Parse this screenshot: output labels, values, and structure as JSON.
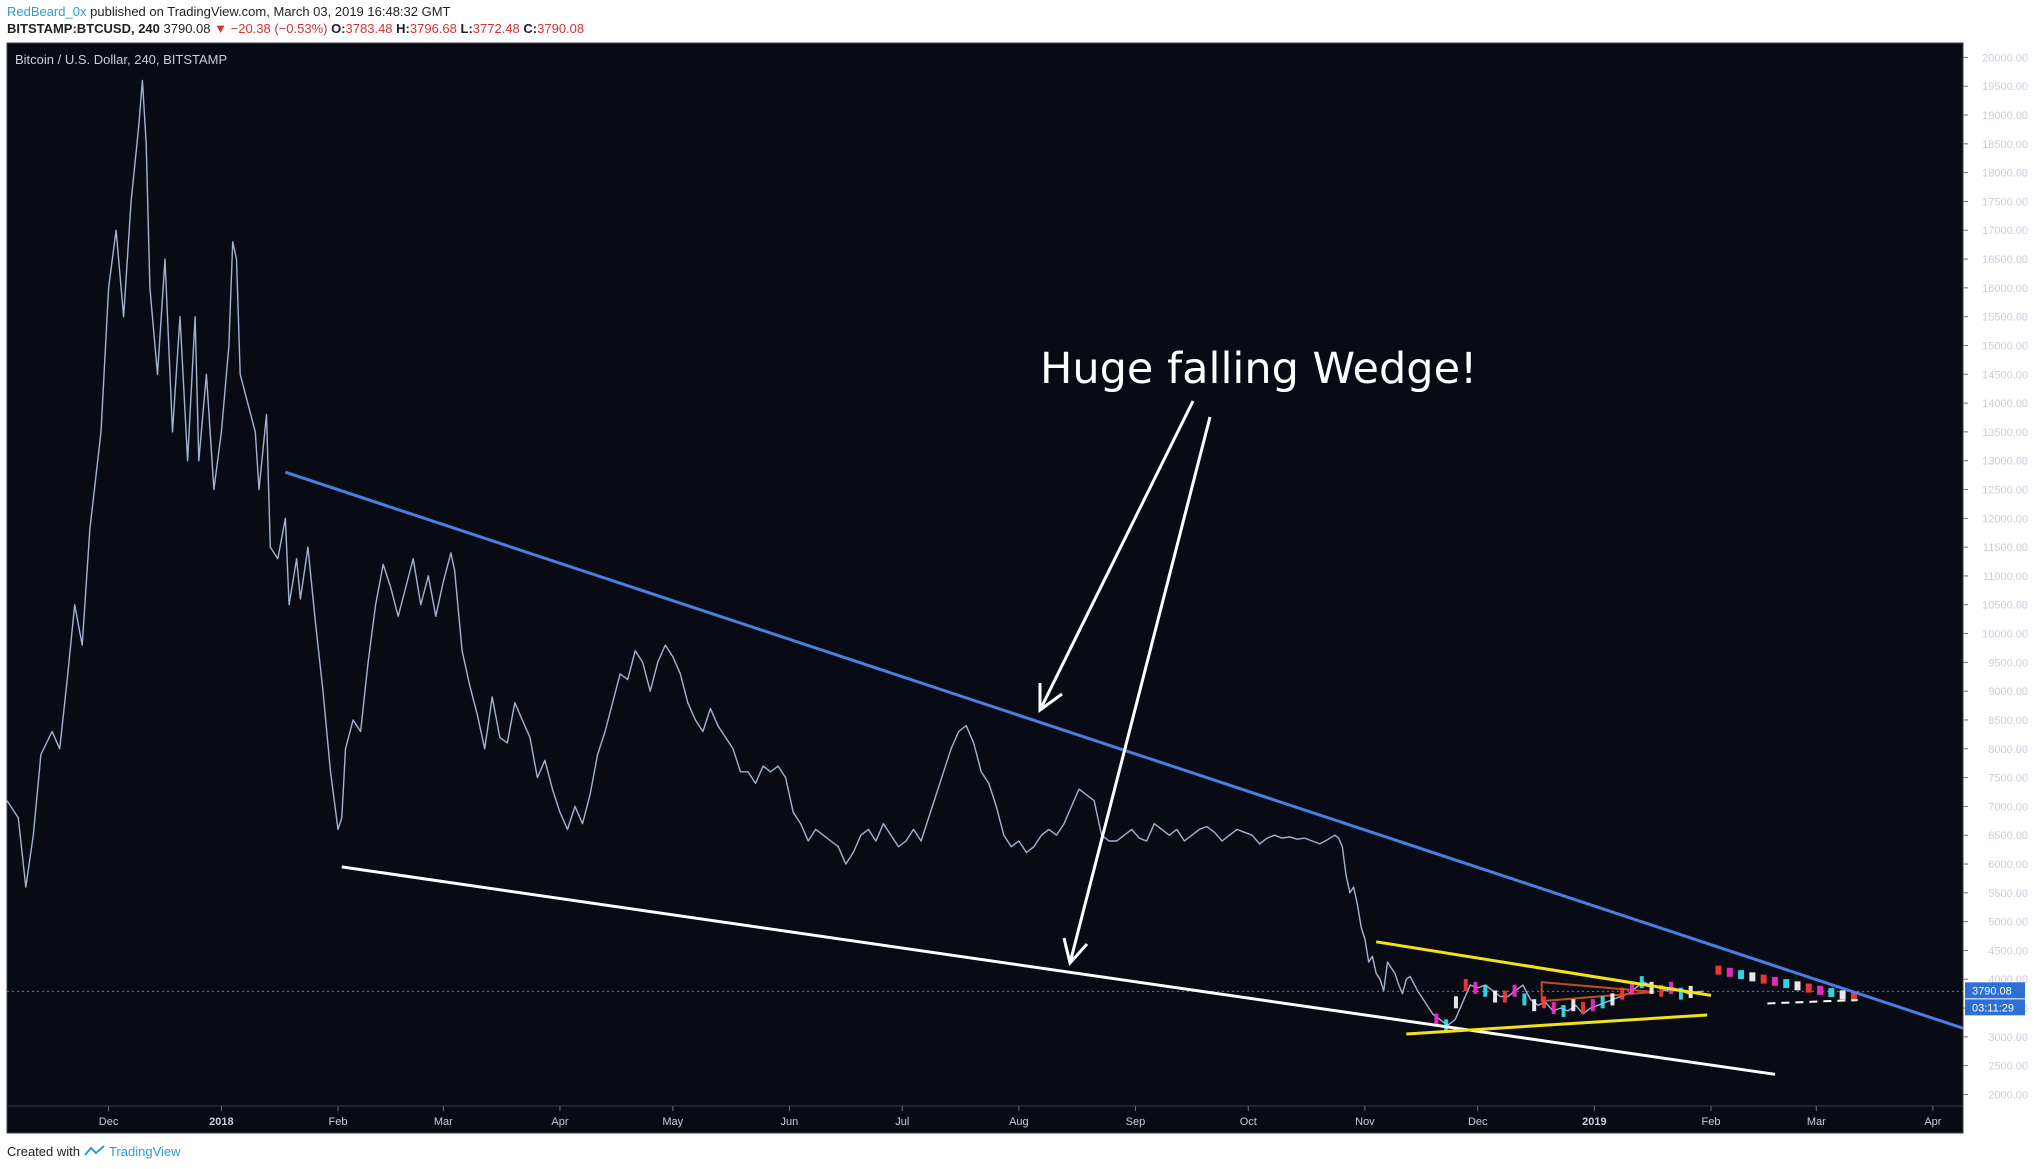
{
  "header": {
    "author": "RedBeard_0x",
    "published_text": "published on TradingView.com, March 03, 2019 16:48:32 GMT",
    "symbol": "BITSTAMP:BTCUSD, 240",
    "last": "3790.08",
    "change": "▼ −20.38 (−0.53%)",
    "o_label": "O:",
    "o_value": "3783.48",
    "h_label": "H:",
    "h_value": "3796.68",
    "l_label": "L:",
    "l_value": "3772.48",
    "c_label": "C:",
    "c_value": "3790.08"
  },
  "footer": {
    "created_with": "Created with",
    "brand": "TradingView"
  },
  "colors": {
    "background": "#080b14",
    "price": "#a3b2d3",
    "upper_trendline": "#4a7fe0",
    "lower_trendline": "#ffffff",
    "annotation": "#ffffff",
    "wedge_small": "#f2e21a",
    "last_price_badge": "#2e6fd6",
    "accent_cyan": "#38e6f2",
    "accent_magenta": "#ff2ad0"
  },
  "chart_data": {
    "type": "line",
    "title": "Bitcoin / U.S. Dollar, 240, BITSTAMP",
    "xlabel": "",
    "ylabel": "",
    "ylim": [
      1800,
      20250
    ],
    "y_ticks": [
      "20000.00",
      "19500.00",
      "19000.00",
      "18500.00",
      "18000.00",
      "17500.00",
      "17000.00",
      "16500.00",
      "16000.00",
      "15500.00",
      "15000.00",
      "14500.00",
      "14000.00",
      "13500.00",
      "13000.00",
      "12500.00",
      "12000.00",
      "11500.00",
      "11000.00",
      "10500.00",
      "10000.00",
      "9500.00",
      "9000.00",
      "8500.00",
      "8000.00",
      "7500.00",
      "7000.00",
      "6500.00",
      "6000.00",
      "5500.00",
      "5000.00",
      "4500.00",
      "4000.00",
      "3500.00",
      "3000.00",
      "2500.00",
      "2000.00"
    ],
    "x_ticks": [
      {
        "label": "Dec",
        "t": 27,
        "bold": false
      },
      {
        "label": "2018",
        "t": 57,
        "bold": true
      },
      {
        "label": "Feb",
        "t": 88,
        "bold": false
      },
      {
        "label": "Mar",
        "t": 116,
        "bold": false
      },
      {
        "label": "Apr",
        "t": 147,
        "bold": false
      },
      {
        "label": "May",
        "t": 177,
        "bold": false
      },
      {
        "label": "Jun",
        "t": 208,
        "bold": false
      },
      {
        "label": "Jul",
        "t": 238,
        "bold": false
      },
      {
        "label": "Aug",
        "t": 269,
        "bold": false
      },
      {
        "label": "Sep",
        "t": 300,
        "bold": false
      },
      {
        "label": "Oct",
        "t": 330,
        "bold": false
      },
      {
        "label": "Nov",
        "t": 361,
        "bold": false
      },
      {
        "label": "Dec",
        "t": 391,
        "bold": false
      },
      {
        "label": "2019",
        "t": 422,
        "bold": true
      },
      {
        "label": "Feb",
        "t": 453,
        "bold": false
      },
      {
        "label": "Mar",
        "t": 481,
        "bold": false
      },
      {
        "label": "Apr",
        "t": 512,
        "bold": false
      }
    ],
    "series": [
      {
        "values": [
          [
            0,
            7100
          ],
          [
            3,
            6800
          ],
          [
            5,
            5600
          ],
          [
            7,
            6500
          ],
          [
            9,
            7900
          ],
          [
            12,
            8300
          ],
          [
            14,
            8000
          ],
          [
            16,
            9200
          ],
          [
            18,
            10500
          ],
          [
            20,
            9800
          ],
          [
            22,
            11800
          ],
          [
            25,
            13500
          ],
          [
            27,
            16000
          ],
          [
            29,
            17000
          ],
          [
            31,
            15500
          ],
          [
            33,
            17500
          ],
          [
            35,
            18800
          ],
          [
            36,
            19600
          ],
          [
            37,
            18500
          ],
          [
            38,
            16000
          ],
          [
            40,
            14500
          ],
          [
            42,
            16500
          ],
          [
            44,
            13500
          ],
          [
            46,
            15500
          ],
          [
            48,
            13000
          ],
          [
            50,
            15500
          ],
          [
            51,
            13000
          ],
          [
            53,
            14500
          ],
          [
            55,
            12500
          ],
          [
            57,
            13500
          ],
          [
            59,
            15000
          ],
          [
            60,
            16800
          ],
          [
            61,
            16500
          ],
          [
            62,
            14500
          ],
          [
            64,
            14000
          ],
          [
            66,
            13500
          ],
          [
            67,
            12500
          ],
          [
            69,
            13800
          ],
          [
            70,
            11500
          ],
          [
            72,
            11300
          ],
          [
            74,
            12000
          ],
          [
            75,
            10500
          ],
          [
            77,
            11300
          ],
          [
            78,
            10600
          ],
          [
            80,
            11500
          ],
          [
            82,
            10200
          ],
          [
            84,
            9000
          ],
          [
            86,
            7600
          ],
          [
            88,
            6600
          ],
          [
            89,
            6800
          ],
          [
            90,
            8000
          ],
          [
            92,
            8500
          ],
          [
            94,
            8300
          ],
          [
            96,
            9500
          ],
          [
            98,
            10500
          ],
          [
            100,
            11200
          ],
          [
            102,
            10800
          ],
          [
            104,
            10300
          ],
          [
            106,
            10800
          ],
          [
            108,
            11300
          ],
          [
            110,
            10500
          ],
          [
            112,
            11000
          ],
          [
            114,
            10300
          ],
          [
            116,
            10900
          ],
          [
            118,
            11400
          ],
          [
            119,
            11100
          ],
          [
            121,
            9700
          ],
          [
            123,
            9100
          ],
          [
            125,
            8600
          ],
          [
            127,
            8000
          ],
          [
            129,
            8900
          ],
          [
            131,
            8200
          ],
          [
            133,
            8100
          ],
          [
            135,
            8800
          ],
          [
            137,
            8500
          ],
          [
            139,
            8200
          ],
          [
            141,
            7500
          ],
          [
            143,
            7800
          ],
          [
            145,
            7300
          ],
          [
            147,
            6900
          ],
          [
            149,
            6600
          ],
          [
            151,
            7000
          ],
          [
            153,
            6700
          ],
          [
            155,
            7200
          ],
          [
            157,
            7900
          ],
          [
            159,
            8300
          ],
          [
            161,
            8800
          ],
          [
            163,
            9300
          ],
          [
            165,
            9200
          ],
          [
            167,
            9700
          ],
          [
            169,
            9500
          ],
          [
            171,
            9000
          ],
          [
            173,
            9500
          ],
          [
            175,
            9800
          ],
          [
            177,
            9600
          ],
          [
            179,
            9300
          ],
          [
            181,
            8800
          ],
          [
            183,
            8500
          ],
          [
            185,
            8300
          ],
          [
            187,
            8700
          ],
          [
            189,
            8400
          ],
          [
            191,
            8200
          ],
          [
            193,
            8000
          ],
          [
            195,
            7600
          ],
          [
            197,
            7600
          ],
          [
            199,
            7400
          ],
          [
            201,
            7700
          ],
          [
            203,
            7600
          ],
          [
            205,
            7700
          ],
          [
            207,
            7500
          ],
          [
            209,
            6900
          ],
          [
            211,
            6700
          ],
          [
            213,
            6400
          ],
          [
            215,
            6600
          ],
          [
            217,
            6500
          ],
          [
            219,
            6400
          ],
          [
            221,
            6300
          ],
          [
            223,
            6000
          ],
          [
            225,
            6200
          ],
          [
            227,
            6500
          ],
          [
            229,
            6600
          ],
          [
            231,
            6400
          ],
          [
            233,
            6700
          ],
          [
            235,
            6500
          ],
          [
            237,
            6300
          ],
          [
            239,
            6400
          ],
          [
            241,
            6600
          ],
          [
            243,
            6400
          ],
          [
            245,
            6800
          ],
          [
            247,
            7200
          ],
          [
            249,
            7600
          ],
          [
            251,
            8000
          ],
          [
            253,
            8300
          ],
          [
            255,
            8400
          ],
          [
            257,
            8100
          ],
          [
            259,
            7600
          ],
          [
            261,
            7400
          ],
          [
            263,
            7000
          ],
          [
            265,
            6500
          ],
          [
            267,
            6300
          ],
          [
            269,
            6400
          ],
          [
            271,
            6200
          ],
          [
            273,
            6300
          ],
          [
            275,
            6500
          ],
          [
            277,
            6600
          ],
          [
            279,
            6500
          ],
          [
            281,
            6700
          ],
          [
            283,
            7000
          ],
          [
            285,
            7300
          ],
          [
            287,
            7200
          ],
          [
            289,
            7100
          ],
          [
            291,
            6500
          ],
          [
            293,
            6400
          ],
          [
            295,
            6400
          ],
          [
            297,
            6500
          ],
          [
            299,
            6600
          ],
          [
            301,
            6450
          ],
          [
            303,
            6400
          ],
          [
            305,
            6700
          ],
          [
            307,
            6600
          ],
          [
            309,
            6500
          ],
          [
            311,
            6600
          ],
          [
            313,
            6400
          ],
          [
            315,
            6500
          ],
          [
            317,
            6600
          ],
          [
            319,
            6650
          ],
          [
            321,
            6550
          ],
          [
            323,
            6400
          ],
          [
            325,
            6500
          ],
          [
            327,
            6600
          ],
          [
            329,
            6550
          ],
          [
            331,
            6500
          ],
          [
            333,
            6350
          ],
          [
            335,
            6450
          ],
          [
            337,
            6500
          ],
          [
            339,
            6450
          ],
          [
            341,
            6470
          ],
          [
            343,
            6430
          ],
          [
            345,
            6450
          ],
          [
            347,
            6400
          ],
          [
            349,
            6350
          ],
          [
            351,
            6420
          ],
          [
            353,
            6500
          ],
          [
            354,
            6450
          ],
          [
            355,
            6300
          ],
          [
            356,
            5800
          ],
          [
            357,
            5500
          ],
          [
            358,
            5600
          ],
          [
            359,
            5300
          ],
          [
            360,
            4900
          ],
          [
            361,
            4700
          ],
          [
            362,
            4300
          ],
          [
            363,
            4400
          ],
          [
            364,
            4100
          ],
          [
            365,
            4000
          ],
          [
            366,
            3800
          ],
          [
            367,
            4300
          ],
          [
            368,
            4200
          ],
          [
            369,
            4100
          ],
          [
            370,
            3900
          ],
          [
            371,
            3750
          ],
          [
            372,
            4000
          ],
          [
            373,
            4050
          ],
          [
            375,
            3800
          ],
          [
            377,
            3600
          ],
          [
            379,
            3400
          ],
          [
            381,
            3300
          ],
          [
            383,
            3200
          ],
          [
            385,
            3300
          ],
          [
            387,
            3600
          ],
          [
            389,
            3900
          ],
          [
            391,
            3850
          ],
          [
            393,
            3900
          ],
          [
            395,
            3800
          ],
          [
            397,
            3700
          ],
          [
            399,
            3700
          ],
          [
            401,
            3800
          ],
          [
            403,
            3900
          ],
          [
            405,
            3650
          ],
          [
            407,
            3550
          ],
          [
            409,
            3600
          ],
          [
            411,
            3450
          ],
          [
            413,
            3500
          ],
          [
            415,
            3450
          ],
          [
            417,
            3550
          ],
          [
            419,
            3400
          ],
          [
            421,
            3500
          ],
          [
            423,
            3550
          ],
          [
            425,
            3600
          ],
          [
            427,
            3650
          ],
          [
            429,
            3700
          ],
          [
            431,
            3750
          ],
          [
            433,
            3850
          ],
          [
            435,
            3950
          ],
          [
            437,
            3900
          ],
          [
            439,
            3850
          ],
          [
            441,
            3800
          ],
          [
            443,
            3850
          ],
          [
            445,
            3800
          ],
          [
            447,
            3750
          ],
          [
            449,
            3780
          ],
          [
            451,
            3790
          ]
        ]
      }
    ],
    "annotations": [
      {
        "type": "text",
        "text": "Huge falling Wedge!"
      },
      {
        "type": "trendline",
        "name": "upper",
        "from": [
          74,
          12800
        ],
        "to": [
          520,
          3150
        ]
      },
      {
        "type": "trendline",
        "name": "lower",
        "from": [
          89,
          5950
        ],
        "to": [
          470,
          2350
        ]
      },
      {
        "type": "trendline",
        "name": "small-wedge-top",
        "from": [
          364,
          4650
        ],
        "to": [
          453,
          3720
        ]
      },
      {
        "type": "trendline",
        "name": "small-wedge-bottom",
        "from": [
          372,
          3050
        ],
        "to": [
          452,
          3380
        ]
      }
    ],
    "last_price": "3790.08",
    "countdown": "03:11:29",
    "grid": false
  }
}
